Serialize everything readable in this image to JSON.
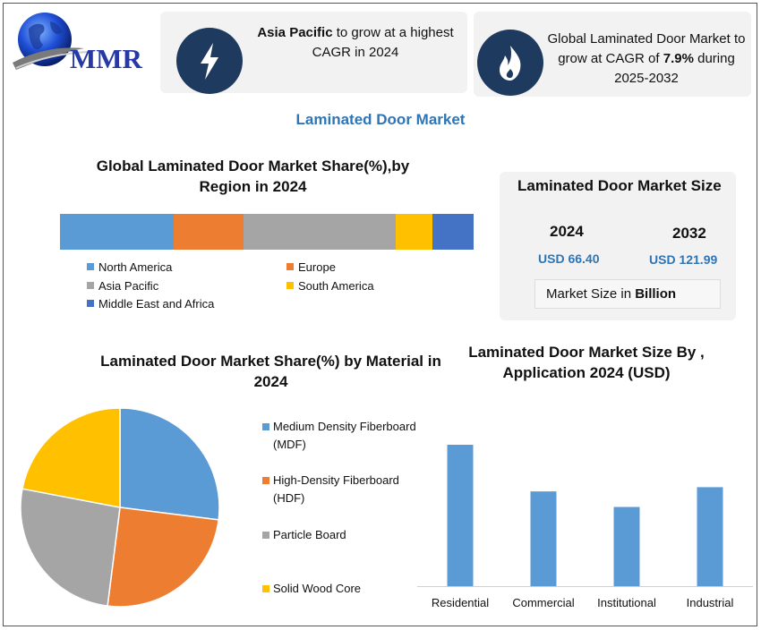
{
  "logo": {
    "text": "MMR"
  },
  "info_cards": {
    "left": {
      "icon": "lightning-bolt-icon",
      "bold": "Asia Pacific",
      "rest": " to grow at a highest CAGR in 2024"
    },
    "right": {
      "icon": "flame-icon",
      "pre": "Global Laminated Door Market to grow at CAGR of ",
      "bold": "7.9%",
      "post": " during 2025-2032"
    }
  },
  "main_title": "Laminated Door Market",
  "colors": {
    "north_america": "#5b9bd5",
    "europe": "#ed7d31",
    "asia_pacific": "#a5a5a5",
    "south_america": "#ffc000",
    "mea": "#4472c4",
    "accent": "#2e75b6",
    "icon_bg": "#1f3a5f"
  },
  "region_chart": {
    "title_line1": "Global Laminated Door Market Share(%),by",
    "title_line2": "Region in 2024",
    "legend": [
      "North America",
      "Europe",
      "Asia Pacific",
      "South America",
      "Middle East and Africa"
    ]
  },
  "market_size": {
    "title": "Laminated Door Market Size",
    "year1": "2024",
    "year2": "2032",
    "value1": "USD 66.40",
    "value2": "USD 121.99",
    "unit_prefix": "Market Size in ",
    "unit_bold": "Billion"
  },
  "material_chart": {
    "title_line1": "Laminated Door Market Share(%) by Material in",
    "title_line2": "2024",
    "legend": [
      {
        "line1": "Medium Density Fiberboard",
        "line2": "(MDF)"
      },
      {
        "line1": "High-Density Fiberboard",
        "line2": "(HDF)"
      },
      {
        "line1": "Particle Board",
        "line2": ""
      },
      {
        "line1": "Solid Wood Core",
        "line2": ""
      }
    ]
  },
  "application_chart": {
    "title_line1": "Laminated Door Market Size By ,",
    "title_line2": "Application  2024  (USD)"
  },
  "chart_data": [
    {
      "type": "bar",
      "orientation": "horizontal-stacked-100",
      "title": "Global Laminated Door Market Share(%),by Region in 2024",
      "series": [
        {
          "name": "North America",
          "values": [
            27.5
          ]
        },
        {
          "name": "Europe",
          "values": [
            16.8
          ]
        },
        {
          "name": "Asia Pacific",
          "values": [
            36.8
          ]
        },
        {
          "name": "South America",
          "values": [
            9.0
          ]
        },
        {
          "name": "Middle East and Africa",
          "values": [
            9.9
          ]
        }
      ],
      "legend": "bottom"
    },
    {
      "type": "pie",
      "title": "Laminated Door Market Share(%) by Material in 2024",
      "categories": [
        "Medium Density Fiberboard (MDF)",
        "High-Density Fiberboard (HDF)",
        "Particle Board",
        "Solid Wood Core"
      ],
      "values": [
        27,
        25,
        26,
        22
      ],
      "legend": "right"
    },
    {
      "type": "bar",
      "title": "Laminated Door Market Size By , Application  2024  (USD)",
      "categories": [
        "Residential",
        "Commercial",
        "Institutional",
        "Industrial"
      ],
      "values": [
        100,
        67,
        56,
        70
      ],
      "grid": false,
      "yaxis_visible": false
    }
  ]
}
